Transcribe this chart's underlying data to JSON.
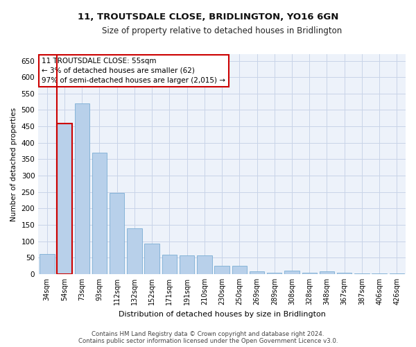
{
  "title": "11, TROUTSDALE CLOSE, BRIDLINGTON, YO16 6GN",
  "subtitle": "Size of property relative to detached houses in Bridlington",
  "xlabel": "Distribution of detached houses by size in Bridlington",
  "ylabel": "Number of detached properties",
  "categories": [
    "34sqm",
    "54sqm",
    "73sqm",
    "93sqm",
    "112sqm",
    "132sqm",
    "152sqm",
    "171sqm",
    "191sqm",
    "210sqm",
    "230sqm",
    "250sqm",
    "269sqm",
    "289sqm",
    "308sqm",
    "328sqm",
    "348sqm",
    "367sqm",
    "387sqm",
    "406sqm",
    "426sqm"
  ],
  "values": [
    62,
    458,
    520,
    370,
    248,
    140,
    93,
    60,
    57,
    57,
    25,
    25,
    8,
    5,
    10,
    5,
    8,
    5,
    3,
    3,
    3
  ],
  "bar_color": "#b8d0ea",
  "bar_edge_color": "#7aadd4",
  "highlight_bar_index": 1,
  "highlight_edge_color": "#cc0000",
  "marker_line_color": "#cc0000",
  "ylim": [
    0,
    670
  ],
  "yticks": [
    0,
    50,
    100,
    150,
    200,
    250,
    300,
    350,
    400,
    450,
    500,
    550,
    600,
    650
  ],
  "annotation_title": "11 TROUTSDALE CLOSE: 55sqm",
  "annotation_line1": "← 3% of detached houses are smaller (62)",
  "annotation_line2": "97% of semi-detached houses are larger (2,015) →",
  "annotation_box_color": "#ffffff",
  "annotation_box_edge_color": "#cc0000",
  "footer_line1": "Contains HM Land Registry data © Crown copyright and database right 2024.",
  "footer_line2": "Contains public sector information licensed under the Open Government Licence v3.0.",
  "grid_color": "#c8d4e8",
  "background_color": "#edf2fa"
}
